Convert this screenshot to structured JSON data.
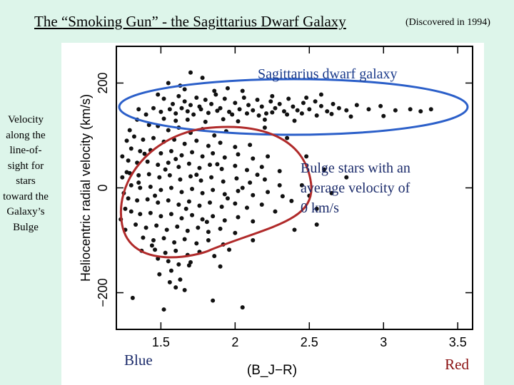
{
  "slide": {
    "title": "The “Smoking Gun” - the Sagittarius Dwarf Galaxy",
    "discovered": "(Discovered in 1994)",
    "side_label": "Velocity along the line-of-sight for stars toward the Galaxy’s Bulge"
  },
  "chart_data": {
    "type": "scatter",
    "title": "",
    "xlabel": "(B_J−R)",
    "ylabel": "Heliocentric radial velocity (km/s)",
    "xlim": [
      1.2,
      3.6
    ],
    "ylim": [
      -270,
      270
    ],
    "x_ticks": [
      1.5,
      2,
      2.5,
      3,
      3.5
    ],
    "x_tick_labels": [
      "1.5",
      "2",
      "2.5",
      "3",
      "3.5"
    ],
    "y_ticks": [
      -200,
      0,
      200
    ],
    "y_tick_labels": [
      "−200",
      "0",
      "200"
    ],
    "x_end_labels": {
      "left": "Blue",
      "right": "Red"
    },
    "annotations": {
      "sagittarius": "Sagittarius dwarf galaxy",
      "bulge": "Bulge stars with an average velocity of 0 km/s"
    },
    "colors": {
      "points": "#111111",
      "sagittarius_ellipse": "#2b5fc9",
      "bulge_ellipse": "#b02a2a",
      "sagittarius_text": "#1a3a8a",
      "bulge_text": "#1a2a6a",
      "end_label_blue": "#1a2a6a",
      "end_label_red": "#8a1010"
    },
    "series": [
      {
        "name": "Sagittarius dwarf galaxy stars",
        "points": [
          [
            1.7,
            220
          ],
          [
            1.55,
            200
          ],
          [
            1.63,
            195
          ],
          [
            1.78,
            210
          ],
          [
            1.95,
            190
          ],
          [
            2.05,
            185
          ],
          [
            1.48,
            178
          ],
          [
            1.52,
            170
          ],
          [
            1.58,
            160
          ],
          [
            1.62,
            175
          ],
          [
            1.66,
            165
          ],
          [
            1.7,
            158
          ],
          [
            1.74,
            172
          ],
          [
            1.77,
            150
          ],
          [
            1.8,
            168
          ],
          [
            1.84,
            160
          ],
          [
            1.87,
            178
          ],
          [
            1.9,
            152
          ],
          [
            1.93,
            170
          ],
          [
            1.96,
            145
          ],
          [
            2.0,
            162
          ],
          [
            2.03,
            150
          ],
          [
            2.06,
            172
          ],
          [
            2.09,
            158
          ],
          [
            2.12,
            148
          ],
          [
            2.15,
            168
          ],
          [
            2.18,
            155
          ],
          [
            2.21,
            142
          ],
          [
            2.24,
            165
          ],
          [
            2.27,
            152
          ],
          [
            2.3,
            160
          ],
          [
            2.33,
            146
          ],
          [
            2.36,
            170
          ],
          [
            2.39,
            155
          ],
          [
            2.42,
            148
          ],
          [
            2.46,
            162
          ],
          [
            2.5,
            150
          ],
          [
            2.54,
            165
          ],
          [
            2.58,
            156
          ],
          [
            2.62,
            146
          ],
          [
            2.66,
            160
          ],
          [
            2.7,
            152
          ],
          [
            2.75,
            148
          ],
          [
            2.82,
            158
          ],
          [
            2.9,
            150
          ],
          [
            2.98,
            156
          ],
          [
            3.08,
            148
          ],
          [
            3.18,
            150
          ],
          [
            3.25,
            146
          ],
          [
            3.32,
            150
          ],
          [
            1.45,
            152
          ],
          [
            1.5,
            145
          ],
          [
            1.56,
            150
          ],
          [
            1.6,
            142
          ],
          [
            1.64,
            152
          ],
          [
            1.68,
            146
          ],
          [
            1.72,
            140
          ],
          [
            1.76,
            155
          ],
          [
            1.82,
            143
          ],
          [
            1.88,
            147
          ],
          [
            1.98,
            140
          ],
          [
            2.08,
            142
          ],
          [
            2.16,
            138
          ],
          [
            2.25,
            144
          ],
          [
            2.35,
            140
          ],
          [
            2.45,
            142
          ],
          [
            2.55,
            138
          ],
          [
            2.65,
            141
          ],
          [
            2.78,
            136
          ],
          [
            3.0,
            137
          ],
          [
            1.52,
            132
          ],
          [
            1.6,
            128
          ],
          [
            1.68,
            130
          ],
          [
            1.8,
            126
          ],
          [
            1.92,
            131
          ],
          [
            2.02,
            127
          ],
          [
            2.2,
            130
          ],
          [
            2.4,
            128
          ],
          [
            1.4,
            140
          ],
          [
            1.35,
            150
          ],
          [
            2.25,
            175
          ],
          [
            2.48,
            172
          ],
          [
            2.58,
            178
          ],
          [
            1.86,
            185
          ],
          [
            1.66,
            188
          ]
        ]
      },
      {
        "name": "Bulge stars",
        "points": [
          [
            1.42,
            120
          ],
          [
            1.48,
            118
          ],
          [
            1.55,
            110
          ],
          [
            1.62,
            115
          ],
          [
            1.7,
            105
          ],
          [
            1.78,
            112
          ],
          [
            1.86,
            100
          ],
          [
            1.94,
            108
          ],
          [
            1.32,
            98
          ],
          [
            1.38,
            92
          ],
          [
            1.45,
            95
          ],
          [
            1.52,
            88
          ],
          [
            1.59,
            92
          ],
          [
            1.66,
            84
          ],
          [
            1.74,
            90
          ],
          [
            1.82,
            80
          ],
          [
            1.9,
            86
          ],
          [
            2.0,
            78
          ],
          [
            2.1,
            82
          ],
          [
            1.3,
            75
          ],
          [
            1.36,
            70
          ],
          [
            1.43,
            72
          ],
          [
            1.5,
            66
          ],
          [
            1.57,
            70
          ],
          [
            1.64,
            62
          ],
          [
            1.71,
            68
          ],
          [
            1.78,
            60
          ],
          [
            1.85,
            66
          ],
          [
            1.93,
            58
          ],
          [
            2.02,
            64
          ],
          [
            2.12,
            56
          ],
          [
            2.22,
            60
          ],
          [
            1.28,
            52
          ],
          [
            1.34,
            48
          ],
          [
            1.41,
            50
          ],
          [
            1.48,
            44
          ],
          [
            1.55,
            48
          ],
          [
            1.62,
            40
          ],
          [
            1.69,
            46
          ],
          [
            1.76,
            38
          ],
          [
            1.83,
            44
          ],
          [
            1.91,
            36
          ],
          [
            2.0,
            42
          ],
          [
            2.08,
            34
          ],
          [
            2.18,
            40
          ],
          [
            2.3,
            32
          ],
          [
            1.29,
            28
          ],
          [
            1.35,
            24
          ],
          [
            1.42,
            26
          ],
          [
            1.49,
            20
          ],
          [
            1.56,
            24
          ],
          [
            1.63,
            16
          ],
          [
            1.7,
            22
          ],
          [
            1.77,
            14
          ],
          [
            1.84,
            20
          ],
          [
            1.92,
            12
          ],
          [
            2.01,
            18
          ],
          [
            2.1,
            10
          ],
          [
            2.2,
            16
          ],
          [
            1.3,
            5
          ],
          [
            1.36,
            0
          ],
          [
            1.43,
            2
          ],
          [
            1.5,
            -4
          ],
          [
            1.57,
            0
          ],
          [
            1.64,
            -8
          ],
          [
            1.71,
            -2
          ],
          [
            1.78,
            -10
          ],
          [
            1.85,
            -4
          ],
          [
            1.93,
            -12
          ],
          [
            2.02,
            -6
          ],
          [
            2.12,
            -14
          ],
          [
            2.22,
            -8
          ],
          [
            2.32,
            -16
          ],
          [
            1.28,
            -20
          ],
          [
            1.34,
            -24
          ],
          [
            1.41,
            -22
          ],
          [
            1.48,
            -28
          ],
          [
            1.55,
            -24
          ],
          [
            1.62,
            -32
          ],
          [
            1.69,
            -26
          ],
          [
            1.76,
            -34
          ],
          [
            1.83,
            -28
          ],
          [
            1.91,
            -36
          ],
          [
            2.0,
            -30
          ],
          [
            2.08,
            -38
          ],
          [
            2.18,
            -32
          ],
          [
            1.3,
            -45
          ],
          [
            1.36,
            -50
          ],
          [
            1.43,
            -48
          ],
          [
            1.5,
            -54
          ],
          [
            1.57,
            -50
          ],
          [
            1.64,
            -58
          ],
          [
            1.71,
            -52
          ],
          [
            1.78,
            -60
          ],
          [
            1.85,
            -54
          ],
          [
            1.93,
            -62
          ],
          [
            2.02,
            -56
          ],
          [
            2.12,
            -64
          ],
          [
            1.33,
            -70
          ],
          [
            1.4,
            -76
          ],
          [
            1.47,
            -72
          ],
          [
            1.54,
            -80
          ],
          [
            1.61,
            -74
          ],
          [
            1.68,
            -82
          ],
          [
            1.75,
            -76
          ],
          [
            1.82,
            -84
          ],
          [
            1.9,
            -78
          ],
          [
            2.0,
            -86
          ],
          [
            1.38,
            -95
          ],
          [
            1.45,
            -100
          ],
          [
            1.52,
            -96
          ],
          [
            1.59,
            -104
          ],
          [
            1.66,
            -98
          ],
          [
            1.74,
            -106
          ],
          [
            1.82,
            -100
          ],
          [
            1.92,
            -108
          ],
          [
            1.46,
            -118
          ],
          [
            1.53,
            -124
          ],
          [
            1.6,
            -120
          ],
          [
            1.68,
            -128
          ],
          [
            1.76,
            -122
          ],
          [
            1.86,
            -130
          ],
          [
            1.55,
            -140
          ],
          [
            1.62,
            -146
          ],
          [
            1.7,
            -142
          ],
          [
            1.35,
            10
          ],
          [
            1.25,
            -10
          ],
          [
            1.27,
            30
          ],
          [
            1.24,
            60
          ],
          [
            1.26,
            -40
          ],
          [
            1.39,
            65
          ],
          [
            1.46,
            -15
          ],
          [
            1.53,
            35
          ],
          [
            1.6,
            55
          ],
          [
            1.67,
            -40
          ],
          [
            1.74,
            25
          ],
          [
            1.81,
            -65
          ],
          [
            1.88,
            45
          ],
          [
            1.95,
            -20
          ],
          [
            2.05,
            0
          ],
          [
            2.15,
            25
          ],
          [
            2.27,
            -45
          ],
          [
            2.38,
            -25
          ],
          [
            2.45,
            5
          ],
          [
            2.55,
            -40
          ],
          [
            2.65,
            -10
          ],
          [
            2.75,
            20
          ],
          [
            1.49,
            -165
          ],
          [
            1.56,
            -180
          ],
          [
            1.63,
            -175
          ],
          [
            1.6,
            -190
          ],
          [
            1.66,
            -195
          ],
          [
            1.57,
            -158
          ],
          [
            1.31,
            -210
          ],
          [
            1.52,
            -232
          ],
          [
            1.85,
            -215
          ],
          [
            2.05,
            -228
          ],
          [
            1.69,
            -148
          ],
          [
            1.44,
            -110
          ],
          [
            1.48,
            -135
          ],
          [
            1.37,
            -120
          ],
          [
            1.29,
            110
          ],
          [
            1.34,
            130
          ],
          [
            2.55,
            -70
          ],
          [
            2.35,
            95
          ],
          [
            2.2,
            115
          ],
          [
            2.48,
            60
          ],
          [
            2.4,
            -80
          ],
          [
            2.12,
            -100
          ],
          [
            1.96,
            -118
          ],
          [
            1.9,
            -150
          ],
          [
            2.6,
            35
          ],
          [
            2.5,
            -15
          ],
          [
            2.3,
            5
          ],
          [
            1.27,
            90
          ],
          [
            1.24,
            20
          ],
          [
            1.23,
            -60
          ],
          [
            1.26,
            -80
          ]
        ]
      }
    ]
  }
}
